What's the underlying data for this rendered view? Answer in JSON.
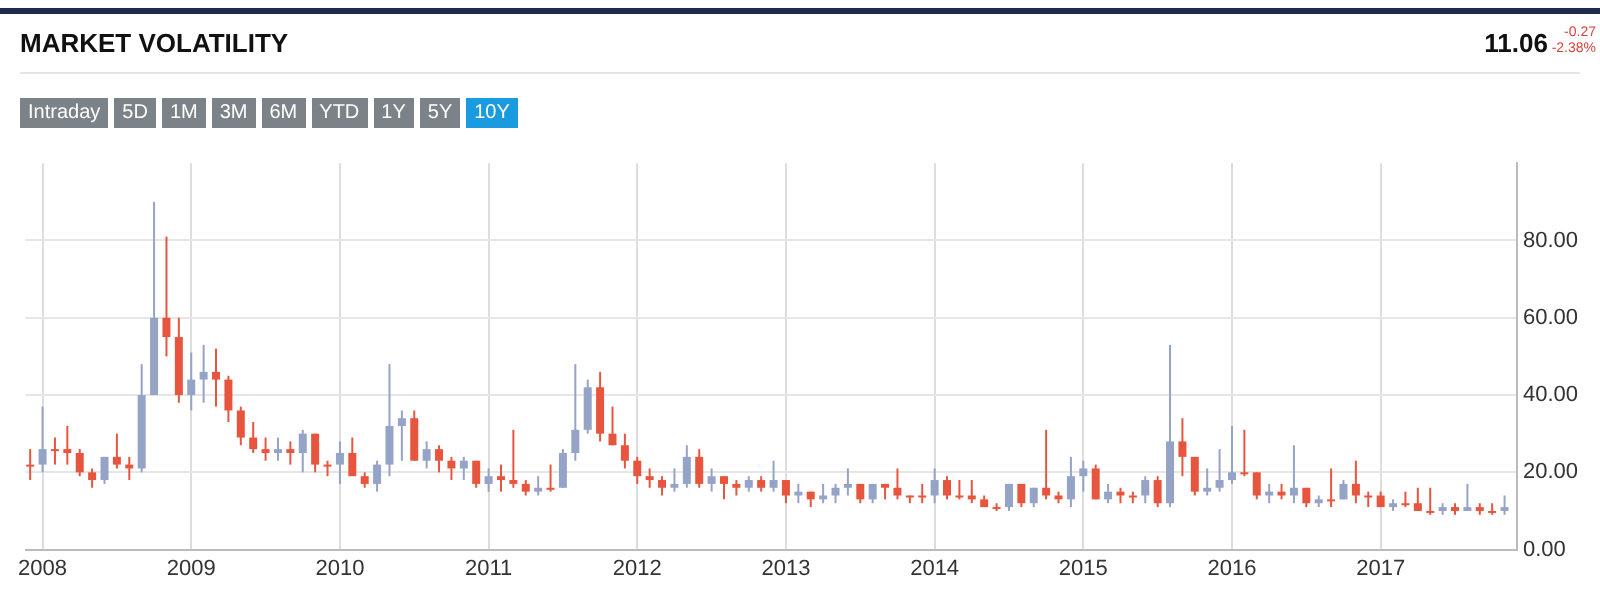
{
  "chart_data": {
    "type": "candlestick",
    "title": "MARKET VOLATILITY",
    "annotations": [
      "11.06",
      "-0.27",
      "-2.38%",
      "Intraday",
      "5D",
      "1M",
      "3M",
      "6M",
      "YTD",
      "1Y",
      "5Y",
      "10Y"
    ],
    "x": [
      "2007-12",
      "2008-01",
      "2008-02",
      "2008-03",
      "2008-04",
      "2008-05",
      "2008-06",
      "2008-07",
      "2008-08",
      "2008-09",
      "2008-10",
      "2008-11",
      "2008-12",
      "2009-01",
      "2009-02",
      "2009-03",
      "2009-04",
      "2009-05",
      "2009-06",
      "2009-07",
      "2009-08",
      "2009-09",
      "2009-10",
      "2009-11",
      "2009-12",
      "2010-01",
      "2010-02",
      "2010-03",
      "2010-04",
      "2010-05",
      "2010-06",
      "2010-07",
      "2010-08",
      "2010-09",
      "2010-10",
      "2010-11",
      "2010-12",
      "2011-01",
      "2011-02",
      "2011-03",
      "2011-04",
      "2011-05",
      "2011-06",
      "2011-07",
      "2011-08",
      "2011-09",
      "2011-10",
      "2011-11",
      "2011-12",
      "2012-01",
      "2012-02",
      "2012-03",
      "2012-04",
      "2012-05",
      "2012-06",
      "2012-07",
      "2012-08",
      "2012-09",
      "2012-10",
      "2012-11",
      "2012-12",
      "2013-01",
      "2013-02",
      "2013-03",
      "2013-04",
      "2013-05",
      "2013-06",
      "2013-07",
      "2013-08",
      "2013-09",
      "2013-10",
      "2013-11",
      "2013-12",
      "2014-01",
      "2014-02",
      "2014-03",
      "2014-04",
      "2014-05",
      "2014-06",
      "2014-07",
      "2014-08",
      "2014-09",
      "2014-10",
      "2014-11",
      "2014-12",
      "2015-01",
      "2015-02",
      "2015-03",
      "2015-04",
      "2015-05",
      "2015-06",
      "2015-07",
      "2015-08",
      "2015-09",
      "2015-10",
      "2015-11",
      "2015-12",
      "2016-01",
      "2016-02",
      "2016-03",
      "2016-04",
      "2016-05",
      "2016-06",
      "2016-07",
      "2016-08",
      "2016-09",
      "2016-10",
      "2016-11",
      "2016-12",
      "2017-01",
      "2017-02",
      "2017-03",
      "2017-04",
      "2017-05",
      "2017-06",
      "2017-07",
      "2017-08",
      "2017-09",
      "2017-10",
      "2017-11"
    ],
    "ohlc": [
      [
        22,
        26,
        18,
        22
      ],
      [
        22,
        37,
        20,
        26
      ],
      [
        26,
        29,
        22,
        26
      ],
      [
        26,
        32,
        22,
        25
      ],
      [
        25,
        26,
        19,
        20
      ],
      [
        20,
        21,
        16,
        18
      ],
      [
        18,
        24,
        17,
        24
      ],
      [
        24,
        30,
        21,
        22
      ],
      [
        22,
        24,
        18,
        21
      ],
      [
        21,
        48,
        20,
        40
      ],
      [
        40,
        90,
        40,
        60
      ],
      [
        60,
        81,
        50,
        55
      ],
      [
        55,
        60,
        38,
        40
      ],
      [
        40,
        51,
        36,
        44
      ],
      [
        44,
        53,
        38,
        46
      ],
      [
        46,
        52,
        37,
        44
      ],
      [
        44,
        45,
        33,
        36
      ],
      [
        36,
        37,
        27,
        29
      ],
      [
        29,
        33,
        25,
        26
      ],
      [
        26,
        29,
        23,
        25
      ],
      [
        25,
        29,
        23,
        26
      ],
      [
        26,
        28,
        22,
        25
      ],
      [
        25,
        31,
        20,
        30
      ],
      [
        30,
        30,
        20,
        22
      ],
      [
        22,
        23,
        19,
        22
      ],
      [
        22,
        28,
        17,
        25
      ],
      [
        25,
        29,
        19,
        19
      ],
      [
        19,
        20,
        16,
        17
      ],
      [
        17,
        23,
        15,
        22
      ],
      [
        22,
        48,
        19,
        32
      ],
      [
        32,
        36,
        23,
        34
      ],
      [
        34,
        36,
        23,
        23
      ],
      [
        23,
        28,
        21,
        26
      ],
      [
        26,
        27,
        20,
        23
      ],
      [
        23,
        24,
        18,
        21
      ],
      [
        21,
        24,
        18,
        23
      ],
      [
        23,
        23,
        16,
        17
      ],
      [
        17,
        21,
        15,
        19
      ],
      [
        19,
        22,
        15,
        18
      ],
      [
        18,
        31,
        16,
        17
      ],
      [
        17,
        18,
        14,
        15
      ],
      [
        15,
        19,
        14,
        16
      ],
      [
        16,
        22,
        15,
        16
      ],
      [
        16,
        26,
        16,
        25
      ],
      [
        25,
        48,
        23,
        31
      ],
      [
        31,
        44,
        30,
        42
      ],
      [
        42,
        46,
        28,
        30
      ],
      [
        30,
        37,
        27,
        27
      ],
      [
        27,
        30,
        21,
        23
      ],
      [
        23,
        24,
        17,
        19
      ],
      [
        19,
        21,
        16,
        18
      ],
      [
        18,
        19,
        14,
        16
      ],
      [
        16,
        21,
        15,
        17
      ],
      [
        17,
        27,
        16,
        24
      ],
      [
        24,
        26,
        16,
        17
      ],
      [
        17,
        21,
        15,
        19
      ],
      [
        19,
        19,
        13,
        17
      ],
      [
        17,
        18,
        14,
        16
      ],
      [
        16,
        19,
        15,
        18
      ],
      [
        18,
        19,
        15,
        16
      ],
      [
        16,
        23,
        15,
        18
      ],
      [
        18,
        18,
        12,
        14
      ],
      [
        14,
        17,
        12,
        15
      ],
      [
        15,
        15,
        11,
        13
      ],
      [
        13,
        17,
        12,
        14
      ],
      [
        14,
        17,
        12,
        16
      ],
      [
        16,
        21,
        14,
        17
      ],
      [
        17,
        17,
        12,
        13
      ],
      [
        13,
        17,
        12,
        17
      ],
      [
        17,
        17,
        13,
        16
      ],
      [
        16,
        21,
        13,
        14
      ],
      [
        14,
        14,
        12,
        14
      ],
      [
        14,
        17,
        12,
        14
      ],
      [
        14,
        21,
        12,
        18
      ],
      [
        18,
        19,
        13,
        14
      ],
      [
        14,
        18,
        13,
        14
      ],
      [
        14,
        18,
        12,
        13
      ],
      [
        13,
        14,
        11,
        11
      ],
      [
        11,
        12,
        10,
        11
      ],
      [
        11,
        17,
        10,
        17
      ],
      [
        17,
        17,
        11,
        12
      ],
      [
        12,
        16,
        11,
        16
      ],
      [
        16,
        31,
        13,
        14
      ],
      [
        14,
        15,
        12,
        13
      ],
      [
        13,
        24,
        11,
        19
      ],
      [
        19,
        23,
        15,
        21
      ],
      [
        21,
        22,
        13,
        13
      ],
      [
        13,
        17,
        12,
        15
      ],
      [
        15,
        16,
        12,
        14
      ],
      [
        14,
        15,
        12,
        14
      ],
      [
        14,
        19,
        12,
        18
      ],
      [
        18,
        19,
        11,
        12
      ],
      [
        12,
        53,
        11,
        28
      ],
      [
        28,
        34,
        19,
        24
      ],
      [
        24,
        24,
        14,
        15
      ],
      [
        15,
        21,
        14,
        16
      ],
      [
        16,
        26,
        15,
        18
      ],
      [
        18,
        32,
        17,
        20
      ],
      [
        20,
        31,
        19,
        20
      ],
      [
        20,
        20,
        13,
        14
      ],
      [
        14,
        17,
        12,
        15
      ],
      [
        15,
        17,
        13,
        14
      ],
      [
        14,
        27,
        12,
        16
      ],
      [
        16,
        16,
        11,
        12
      ],
      [
        12,
        14,
        11,
        13
      ],
      [
        13,
        21,
        11,
        13
      ],
      [
        13,
        18,
        13,
        17
      ],
      [
        17,
        23,
        12,
        14
      ],
      [
        14,
        15,
        11,
        14
      ],
      [
        14,
        15,
        11,
        11
      ],
      [
        11,
        13,
        10,
        12
      ],
      [
        12,
        15,
        11,
        12
      ],
      [
        12,
        16,
        10,
        10
      ],
      [
        10,
        16,
        9,
        10
      ],
      [
        10,
        12,
        9,
        11
      ],
      [
        11,
        12,
        9,
        10
      ],
      [
        10,
        17,
        10,
        11
      ],
      [
        11,
        12,
        9,
        10
      ],
      [
        10,
        12,
        9,
        10
      ],
      [
        10,
        14,
        9,
        11
      ]
    ],
    "colors": [
      "#e8553f",
      "#95a3c6",
      "#e8553f",
      "#e8553f",
      "#e8553f",
      "#e8553f",
      "#95a3c6",
      "#e8553f",
      "#e8553f",
      "#95a3c6",
      "#95a3c6",
      "#e8553f",
      "#e8553f",
      "#95a3c6",
      "#95a3c6",
      "#e8553f",
      "#e8553f",
      "#e8553f",
      "#e8553f",
      "#e8553f",
      "#95a3c6",
      "#e8553f",
      "#95a3c6",
      "#e8553f",
      "#e8553f",
      "#95a3c6",
      "#e8553f",
      "#e8553f",
      "#95a3c6",
      "#95a3c6",
      "#95a3c6",
      "#e8553f",
      "#95a3c6",
      "#e8553f",
      "#e8553f",
      "#95a3c6",
      "#e8553f",
      "#95a3c6",
      "#e8553f",
      "#e8553f",
      "#e8553f",
      "#95a3c6",
      "#e8553f",
      "#95a3c6",
      "#95a3c6",
      "#95a3c6",
      "#e8553f",
      "#e8553f",
      "#e8553f",
      "#e8553f",
      "#e8553f",
      "#e8553f",
      "#95a3c6",
      "#95a3c6",
      "#e8553f",
      "#95a3c6",
      "#e8553f",
      "#e8553f",
      "#95a3c6",
      "#e8553f",
      "#95a3c6",
      "#e8553f",
      "#95a3c6",
      "#e8553f",
      "#95a3c6",
      "#95a3c6",
      "#95a3c6",
      "#e8553f",
      "#95a3c6",
      "#e8553f",
      "#e8553f",
      "#e8553f",
      "#e8553f",
      "#95a3c6",
      "#e8553f",
      "#e8553f",
      "#e8553f",
      "#e8553f",
      "#e8553f",
      "#95a3c6",
      "#e8553f",
      "#95a3c6",
      "#e8553f",
      "#e8553f",
      "#95a3c6",
      "#95a3c6",
      "#e8553f",
      "#95a3c6",
      "#e8553f",
      "#e8553f",
      "#95a3c6",
      "#e8553f",
      "#95a3c6",
      "#e8553f",
      "#e8553f",
      "#95a3c6",
      "#95a3c6",
      "#95a3c6",
      "#e8553f",
      "#e8553f",
      "#95a3c6",
      "#e8553f",
      "#95a3c6",
      "#e8553f",
      "#95a3c6",
      "#e8553f",
      "#95a3c6",
      "#e8553f",
      "#e8553f",
      "#e8553f",
      "#95a3c6",
      "#e8553f",
      "#e8553f",
      "#e8553f",
      "#95a3c6",
      "#e8553f",
      "#95a3c6",
      "#e8553f",
      "#e8553f",
      "#95a3c6"
    ],
    "xlim": [
      "2007-11-20",
      "2017-12-01"
    ],
    "xticks": [
      "2008",
      "2009",
      "2010",
      "2011",
      "2012",
      "2013",
      "2014",
      "2015",
      "2016",
      "2017"
    ],
    "ylim": [
      0,
      100
    ],
    "yticks": [
      {
        "value": 0,
        "label": "0.00"
      },
      {
        "value": 20,
        "label": "20.00"
      },
      {
        "value": 40,
        "label": "40.00"
      },
      {
        "value": 60,
        "label": "60.00"
      },
      {
        "value": 80,
        "label": "80.00"
      }
    ],
    "grid": true
  }
}
